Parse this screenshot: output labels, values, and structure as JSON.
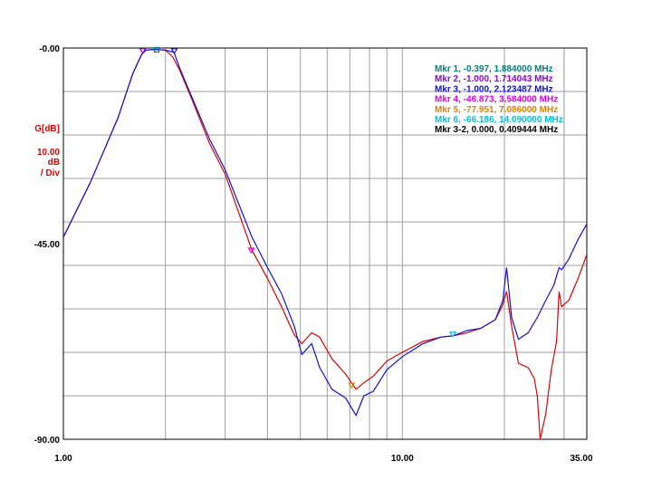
{
  "chart_data": {
    "type": "line",
    "x_scale": "log",
    "xlim": [
      1.0,
      35.0
    ],
    "ylim": [
      -90.0,
      0.0
    ],
    "x_tick_labels": [
      "1.00",
      "10.00",
      "35.00"
    ],
    "y_tick_labels": [
      "-0.00",
      "-45.00",
      "-90.00"
    ],
    "ylabel_lines": [
      "G[dB]",
      "10.00",
      "dB",
      "/ Div"
    ],
    "grid": true,
    "colors": {
      "red_trace": "#e00000",
      "blue_trace": "#1010e0",
      "grid": "#a0a0a0",
      "ylabel": "#e00000"
    },
    "series": [
      {
        "color": "#e00000",
        "x": [
          1.0,
          1.2,
          1.45,
          1.6,
          1.7,
          1.75,
          1.8,
          1.9,
          2.0,
          2.1,
          2.2,
          2.4,
          2.7,
          3.0,
          3.6,
          4.0,
          4.4,
          4.8,
          5.05,
          5.4,
          5.7,
          6.2,
          6.8,
          7.3,
          7.7,
          8.2,
          9.0,
          10.0,
          11.5,
          13.0,
          14.1,
          15.5,
          17.0,
          18.8,
          19.8,
          20.3,
          21.0,
          22.0,
          23.5,
          24.5,
          25.0,
          25.5,
          26.5,
          27.5,
          28.5,
          29.0,
          29.5,
          31.0,
          33.0,
          35.0
        ],
        "y": [
          -43.5,
          -31.0,
          -16.0,
          -6.0,
          -1.5,
          -0.5,
          -0.4,
          -0.35,
          -0.5,
          -2.0,
          -5.0,
          -12.0,
          -22.0,
          -29.0,
          -46.5,
          -53.0,
          -59.5,
          -66.0,
          -68.0,
          -65.5,
          -66.5,
          -71.5,
          -75.0,
          -78.5,
          -77.0,
          -75.5,
          -72.0,
          -70.0,
          -67.5,
          -66.5,
          -66.2,
          -65.5,
          -64.5,
          -62.5,
          -59.0,
          -56.0,
          -64.0,
          -72.5,
          -73.5,
          -76.0,
          -80.0,
          -92.0,
          -84.0,
          -74.0,
          -67.5,
          -56.0,
          -59.5,
          -58.0,
          -53.0,
          -47.5
        ]
      },
      {
        "color": "#1010e0",
        "x": [
          1.0,
          1.2,
          1.45,
          1.6,
          1.7,
          1.75,
          1.8,
          1.9,
          2.0,
          2.12,
          2.2,
          2.4,
          2.7,
          3.0,
          3.6,
          4.0,
          4.4,
          4.8,
          5.05,
          5.4,
          5.7,
          6.2,
          6.8,
          7.3,
          7.7,
          8.2,
          9.0,
          10.0,
          11.5,
          13.0,
          14.1,
          15.5,
          17.0,
          18.8,
          19.8,
          20.3,
          21.0,
          22.0,
          23.5,
          25.0,
          26.5,
          28.0,
          29.0,
          29.5,
          31.0,
          33.0,
          35.0
        ],
        "y": [
          -43.5,
          -31.0,
          -16.0,
          -6.0,
          -1.5,
          -0.5,
          -0.4,
          -0.35,
          -0.5,
          -1.0,
          -4.5,
          -11.5,
          -21.0,
          -28.0,
          -43.5,
          -50.5,
          -56.5,
          -64.0,
          -70.5,
          -68.0,
          -73.5,
          -78.5,
          -80.5,
          -84.5,
          -80.0,
          -79.0,
          -74.0,
          -71.0,
          -68.0,
          -66.5,
          -66.2,
          -65.0,
          -64.5,
          -62.5,
          -58.0,
          -50.5,
          -62.0,
          -67.0,
          -65.5,
          -62.0,
          -58.0,
          -54.5,
          -50.5,
          -51.0,
          -48.5,
          -44.0,
          -40.5
        ]
      }
    ],
    "markers": [
      {
        "shape": "square",
        "color": "#008080",
        "x": 1.884,
        "y": -0.397
      },
      {
        "shape": "triangle",
        "color": "#9000e0",
        "x": 1.714043,
        "y": -1.0
      },
      {
        "shape": "triangle",
        "color": "#1010e0",
        "x": 2.123487,
        "y": -1.0
      },
      {
        "shape": "triangle",
        "color": "#e000e0",
        "x": 3.584,
        "y": -46.873
      },
      {
        "shape": "triangle",
        "color": "#e08000",
        "x": 7.086,
        "y": -77.951
      },
      {
        "shape": "triangle",
        "color": "#00c0e0",
        "x": 14.09,
        "y": -66.186
      }
    ],
    "marker_readouts": [
      {
        "text": "Mkr 1, -0.397, 1.884000 MHz",
        "color": "#008080"
      },
      {
        "text": "Mkr 2, -1.000, 1.714043 MHz",
        "color": "#9000e0"
      },
      {
        "text": "Mkr 3, -1.000, 2.123487 MHz",
        "color": "#1010e0"
      },
      {
        "text": "Mkr 4, -46.873, 3.584000 MHz",
        "color": "#e000e0"
      },
      {
        "text": "Mkr 5, -77.951, 7.086000 MHz",
        "color": "#e08000"
      },
      {
        "text": "Mkr 6, -66.186, 14.090000 MHz",
        "color": "#00c0e0"
      },
      {
        "text": "Mkr 3-2, 0.000, 0.409444 MHz",
        "color": "#000000"
      }
    ]
  }
}
